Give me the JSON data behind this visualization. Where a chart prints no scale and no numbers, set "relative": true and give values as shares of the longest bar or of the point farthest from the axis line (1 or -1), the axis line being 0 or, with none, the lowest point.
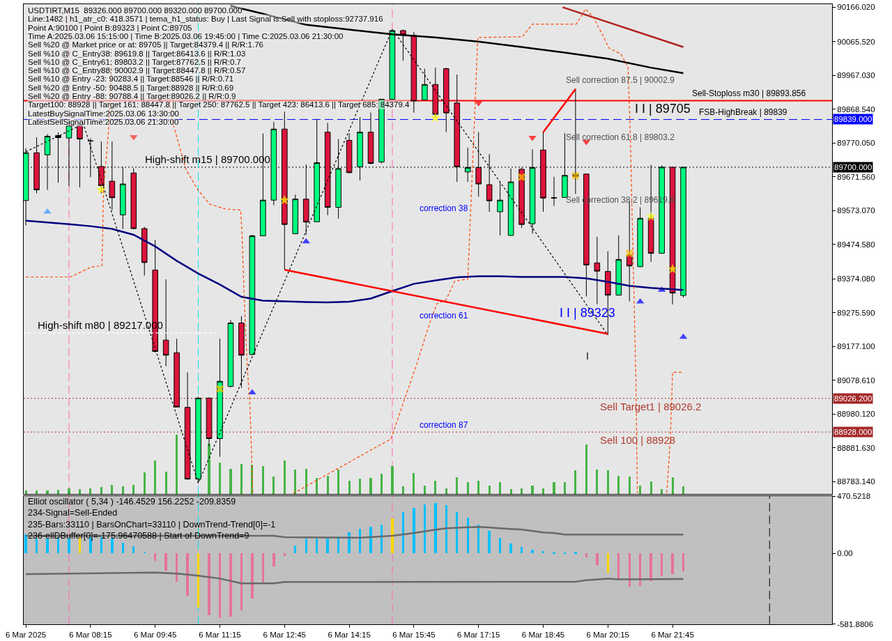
{
  "chart_data": [
    {
      "type": "candlestick",
      "title": "USDTIRT,M15  89326.000 89700.000 89320.000 89700.000",
      "x": [
        "2025-03-06T06:45",
        "2025-03-06T07:00",
        "2025-03-06T07:15",
        "2025-03-06T07:30",
        "2025-03-06T07:45",
        "2025-03-06T08:00",
        "2025-03-06T08:15",
        "2025-03-06T08:30",
        "2025-03-06T08:45",
        "2025-03-06T09:00",
        "2025-03-06T09:15",
        "2025-03-06T09:30",
        "2025-03-06T09:45",
        "2025-03-06T10:00",
        "2025-03-06T10:15",
        "2025-03-06T10:30",
        "2025-03-06T10:45",
        "2025-03-06T11:00",
        "2025-03-06T11:15",
        "2025-03-06T11:30",
        "2025-03-06T11:45",
        "2025-03-06T12:00",
        "2025-03-06T12:15",
        "2025-03-06T12:30",
        "2025-03-06T12:45",
        "2025-03-06T13:00",
        "2025-03-06T13:15",
        "2025-03-06T13:30",
        "2025-03-06T13:45",
        "2025-03-06T14:00",
        "2025-03-06T14:15",
        "2025-03-06T14:30",
        "2025-03-06T14:45",
        "2025-03-06T15:00",
        "2025-03-06T15:15",
        "2025-03-06T15:30",
        "2025-03-06T15:45",
        "2025-03-06T16:00",
        "2025-03-06T16:15",
        "2025-03-06T16:30",
        "2025-03-06T16:45",
        "2025-03-06T17:00",
        "2025-03-06T17:15",
        "2025-03-06T17:30",
        "2025-03-06T17:45",
        "2025-03-06T18:00",
        "2025-03-06T18:15",
        "2025-03-06T18:30",
        "2025-03-06T18:45",
        "2025-03-06T19:00",
        "2025-03-06T19:15",
        "2025-03-06T19:30",
        "2025-03-06T19:45",
        "2025-03-06T20:00",
        "2025-03-06T20:15",
        "2025-03-06T20:30",
        "2025-03-06T20:45",
        "2025-03-06T21:00",
        "2025-03-06T21:15",
        "2025-03-06T21:30",
        "2025-03-06T21:45",
        "2025-03-06T22:00"
      ],
      "ohlc": [
        [
          89603,
          89755,
          89530,
          89742
        ],
        [
          89742,
          89787,
          89624,
          89634
        ],
        [
          89736,
          89796,
          89634,
          89790
        ],
        [
          89792,
          89801,
          89655,
          89786
        ],
        [
          89785,
          89836,
          89645,
          89821
        ],
        [
          89821,
          89832,
          89641,
          89782
        ],
        [
          89777,
          89784,
          89671,
          89776
        ],
        [
          89702,
          89775,
          89624,
          89646
        ],
        [
          89659,
          89775,
          89575,
          89611
        ],
        [
          89561,
          89700,
          89520,
          89651
        ],
        [
          89683,
          89697,
          89519,
          89521
        ],
        [
          89521,
          89526,
          89384,
          89422
        ],
        [
          89400,
          89488,
          89160,
          89163
        ],
        [
          89196,
          89373,
          89120,
          89152
        ],
        [
          89159,
          89200,
          89001,
          89001
        ],
        [
          89000,
          89102,
          88789,
          88791
        ],
        [
          88791,
          89031,
          88779,
          89027
        ],
        [
          89027,
          89029,
          88887,
          88909
        ],
        [
          88909,
          89200,
          88856,
          89076
        ],
        [
          89061,
          89255,
          89058,
          89246
        ],
        [
          89246,
          89266,
          89057,
          89152
        ],
        [
          89154,
          89503,
          89152,
          89500
        ],
        [
          89500,
          89798,
          89499,
          89604
        ],
        [
          89604,
          89832,
          89589,
          89811
        ],
        [
          89811,
          89862,
          89401,
          89533
        ],
        [
          89506,
          89620,
          89505,
          89607
        ],
        [
          89607,
          89708,
          89503,
          89540
        ],
        [
          89541,
          89839,
          89540,
          89713
        ],
        [
          89802,
          89829,
          89560,
          89583
        ],
        [
          89583,
          89782,
          89550,
          89696
        ],
        [
          89778,
          89799,
          89683,
          89684
        ],
        [
          89701,
          89846,
          89661,
          89802
        ],
        [
          89802,
          89859,
          89708,
          89711
        ],
        [
          89715,
          89898,
          89711,
          89898
        ],
        [
          89898,
          90102,
          89898,
          90098
        ],
        [
          90098,
          90101,
          90010,
          90086
        ],
        [
          90084,
          90094,
          89859,
          89893
        ],
        [
          89896,
          89987,
          89895,
          89941
        ],
        [
          89941,
          89990,
          89846,
          89854
        ],
        [
          89987,
          89990,
          89802,
          89858
        ],
        [
          89887,
          89970,
          89657,
          89701
        ],
        [
          89686,
          89757,
          89657,
          89699
        ],
        [
          89699,
          89802,
          89614,
          89651
        ],
        [
          89649,
          89738,
          89570,
          89602
        ],
        [
          89570,
          89657,
          89501,
          89604
        ],
        [
          89501,
          89696,
          89501,
          89657
        ],
        [
          89694,
          89699,
          89523,
          89533
        ],
        [
          89535,
          89752,
          89506,
          89699
        ],
        [
          89750,
          89802,
          89570,
          89610
        ],
        [
          89611,
          89672,
          89587,
          89610
        ],
        [
          89612,
          89799,
          89611,
          89676
        ],
        [
          89673,
          89928,
          89622,
          89679
        ],
        [
          89680,
          89681,
          89323,
          89415
        ],
        [
          89421,
          89497,
          89300,
          89397
        ],
        [
          89396,
          89455,
          89211,
          89327
        ],
        [
          89327,
          89501,
          89326,
          89431
        ],
        [
          89444,
          89601,
          89309,
          89412
        ],
        [
          89410,
          89583,
          89409,
          89551
        ],
        [
          89551,
          89707,
          89424,
          89449
        ],
        [
          89449,
          89705,
          89448,
          89700
        ],
        [
          89700,
          89701,
          89300,
          89333
        ],
        [
          89326,
          89700,
          89320,
          89700
        ]
      ],
      "colors": [
        "#00ff7f",
        "#dc143c",
        "#00ff7f",
        "#000000",
        "#00ff7f",
        "#dc143c",
        "#000000",
        "#dc143c",
        "#dc143c",
        "#00ff7f",
        "#dc143c",
        "#dc143c",
        "#dc143c",
        "#dc143c",
        "#dc143c",
        "#dc143c",
        "#00ff7f",
        "#dc143c",
        "#00ff7f",
        "#00ff7f",
        "#dc143c",
        "#00ff7f",
        "#00ff7f",
        "#00ff7f",
        "#dc143c",
        "#00ff7f",
        "#dc143c",
        "#00ff7f",
        "#dc143c",
        "#00ff7f",
        "#dc143c",
        "#00ff7f",
        "#dc143c",
        "#00ff7f",
        "#00ff7f",
        "#dc143c",
        "#dc143c",
        "#00ff7f",
        "#dc143c",
        "#dc143c",
        "#dc143c",
        "#00ff7f",
        "#dc143c",
        "#dc143c",
        "#00ff7f",
        "#00ff7f",
        "#dc143c",
        "#00ff7f",
        "#dc143c",
        "#000000",
        "#00ff7f",
        "#000000",
        "#dc143c",
        "#dc143c",
        "#dc143c",
        "#00ff7f",
        "#dc143c",
        "#00ff7f",
        "#dc143c",
        "#00ff7f",
        "#dc143c",
        "#00ff7f"
      ],
      "xlim": [
        "2025-03-06T06:42",
        "2025-03-07T01:27"
      ],
      "ylim": [
        88747,
        90175
      ],
      "yticks": [
        {
          "value": 90166.02,
          "label": "90166.020"
        },
        {
          "value": 90065.52,
          "label": "90065.520"
        },
        {
          "value": 89967.03,
          "label": "89967.030"
        },
        {
          "value": 89868.54,
          "label": "89868.540"
        },
        {
          "value": 89770.05,
          "label": "89770.050"
        },
        {
          "value": 89671.56,
          "label": "89671.560"
        },
        {
          "value": 89573.07,
          "label": "89573.070"
        },
        {
          "value": 89474.58,
          "label": "89474.580"
        },
        {
          "value": 89374.08,
          "label": "89374.080"
        },
        {
          "value": 89275.59,
          "label": "89275.590"
        },
        {
          "value": 89177.1,
          "label": "89177.100"
        },
        {
          "value": 89078.61,
          "label": "89078.610"
        },
        {
          "value": 88980.12,
          "label": "88980.120"
        },
        {
          "value": 88881.63,
          "label": "88881.630"
        },
        {
          "value": 88783.14,
          "label": "88783.140"
        }
      ],
      "tick_labels": "y",
      "series": [
        {
          "type": "line",
          "color": "#000080",
          "line_style": "solid",
          "x": [
            "2025-03-06T06:45",
            "2025-03-06T07:45",
            "2025-03-06T08:15",
            "2025-03-06T08:45",
            "2025-03-06T09:15",
            "2025-03-06T09:45",
            "2025-03-06T10:15",
            "2025-03-06T10:45",
            "2025-03-06T11:15",
            "2025-03-06T11:45",
            "2025-03-06T12:15",
            "2025-03-06T12:45",
            "2025-03-06T13:15",
            "2025-03-06T13:45",
            "2025-03-06T14:15",
            "2025-03-06T14:45",
            "2025-03-06T15:15",
            "2025-03-06T15:45",
            "2025-03-06T16:15",
            "2025-03-06T16:45",
            "2025-03-06T17:15",
            "2025-03-06T17:45",
            "2025-03-06T18:15",
            "2025-03-06T18:45",
            "2025-03-06T19:15",
            "2025-03-06T19:45",
            "2025-03-06T20:15",
            "2025-03-06T20:45",
            "2025-03-06T21:15",
            "2025-03-06T21:45",
            "2025-03-06T22:00"
          ],
          "values": [
            89544,
            89534,
            89528,
            89520,
            89503,
            89469,
            89427,
            89390,
            89358,
            89322,
            89311,
            89309,
            89307,
            89306,
            89308,
            89317,
            89339,
            89360,
            89370,
            89379,
            89382,
            89382,
            89380,
            89380,
            89380,
            89376,
            89366,
            89354,
            89348,
            89344,
            89342
          ]
        },
        {
          "type": "line",
          "color": "#000000",
          "line_style": "solid",
          "x": [
            "2025-03-06T11:30",
            "2025-03-06T12:15",
            "2025-03-06T12:45",
            "2025-03-06T13:15",
            "2025-03-06T14:15",
            "2025-03-06T15:15",
            "2025-03-06T16:15",
            "2025-03-06T17:15",
            "2025-03-06T18:15",
            "2025-03-06T19:15",
            "2025-03-06T20:15",
            "2025-03-06T21:15",
            "2025-03-06T22:00"
          ],
          "values": [
            90170,
            90147,
            90131,
            90115,
            90101,
            90087,
            90078,
            90066,
            90050,
            90034,
            90016,
            89990,
            89974
          ]
        },
        {
          "type": "line",
          "color": "#b22222",
          "line_style": "solid",
          "x": [
            "2025-03-06T19:12",
            "2025-03-06T22:00"
          ],
          "values": [
            90166,
            90050
          ]
        },
        {
          "type": "line",
          "color": "#ff4500",
          "line_style": "dashed",
          "x": [
            "2025-03-06T10:05",
            "2025-03-06T10:09",
            "2025-03-06T10:28",
            "2025-03-06T10:44",
            "2025-03-06T11:01",
            "2025-03-06T11:23",
            "2025-03-06T11:44",
            "2025-03-06T11:46",
            "2025-03-06T11:49",
            "2025-03-06T11:53",
            "2025-03-06T11:57",
            "2025-03-06T12:01",
            "2025-03-06T12:30",
            "2025-03-06T12:57",
            "2025-03-06T15:13",
            "2025-03-06T15:49",
            "2025-03-06T16:05",
            "2025-03-06T16:17",
            "2025-03-06T16:30",
            "2025-03-06T16:42",
            "2025-03-06T17:00",
            "2025-03-06T17:04",
            "2025-03-06T17:08",
            "2025-03-06T17:14",
            "2025-03-06T18:16",
            "2025-03-06T18:30",
            "2025-03-06T19:31",
            "2025-03-06T19:44",
            "2025-03-06T19:54",
            "2025-03-06T20:08",
            "2025-03-06T20:16",
            "2025-03-06T20:33",
            "2025-03-06T20:43",
            "2025-03-06T20:46",
            "2025-03-06T20:50",
            "2025-03-06T20:54",
            "2025-03-06T20:56"
          ],
          "values": [
            89893,
            89832,
            89693,
            89635,
            89592,
            89578,
            89575,
            89499,
            89312,
            89123,
            88998,
            88747,
            null,
            88749,
            88908,
            89126,
            89233,
            89302,
            89314,
            89368,
            89374,
            89570,
            89772,
            90078,
            90080,
            90117,
            90117,
            90161,
            90139,
            90084,
            90048,
            90030,
            89992,
            89810,
            89445,
            89080,
            88751
          ]
        },
        {
          "type": "line",
          "color": "#ff4500",
          "line_style": "dashed",
          "x": [
            "2025-03-06T06:45",
            "2025-03-06T07:47",
            "2025-03-06T08:16",
            "2025-03-06T08:31",
            "2025-03-06T08:33",
            "2025-03-06T08:41",
            "2025-03-06T08:44"
          ],
          "values": [
            89380,
            89380,
            89409,
            89413,
            89630,
            89832,
            90004
          ]
        },
        {
          "type": "line",
          "color": "#ff4500",
          "line_style": "dashed",
          "x": [
            "2025-03-06T21:37",
            "2025-03-06T21:42",
            "2025-03-06T21:45",
            "2025-03-06T22:00"
          ],
          "values": [
            88751,
            88914,
            89102,
            89102
          ]
        },
        {
          "type": "line",
          "color": "#000000",
          "line_style": "dotted",
          "x": [
            "2025-03-06T06:45",
            "2025-03-06T08:05",
            "2025-03-06T10:45",
            "2025-03-06T15:15",
            "2025-03-06T20:15"
          ],
          "values": [
            89745,
            89826,
            88779,
            90102,
            89211
          ]
        },
        {
          "type": "line",
          "color": "#ff0000",
          "line_style": "solid",
          "x": [
            "2025-03-06T12:45",
            "2025-03-06T20:15"
          ],
          "values": [
            89401,
            89214
          ]
        },
        {
          "type": "line",
          "color": "#ff0000",
          "line_style": "solid",
          "x": [
            "2025-03-06T18:45",
            "2025-03-06T19:30"
          ],
          "values": [
            89802,
            89928
          ]
        },
        {
          "type": "line",
          "color": "#ffffff",
          "line_style": "dashed",
          "x": [
            "2025-03-06T06:42",
            "2025-03-06T11:14"
          ],
          "values": [
            89217,
            89217
          ]
        },
        {
          "type": "scatter",
          "color": "#ffff00",
          "marker": "star",
          "x": [
            "2025-03-06T08:30",
            "2025-03-06T12:45",
            "2025-03-06T16:15",
            "2025-03-06T21:15",
            "2025-03-06T21:45"
          ],
          "values": [
            89634,
            89604,
            89844,
            89556,
            89403
          ]
        },
        {
          "type": "scatter",
          "color": "#ffc000",
          "marker": "cross",
          "x": [
            "2025-03-06T11:15",
            "2025-03-06T18:15",
            "2025-03-06T19:30",
            "2025-03-06T20:45"
          ],
          "values": [
            89054,
            89671,
            89675,
            89449
          ]
        },
        {
          "type": "scatter",
          "color": "#0000ff",
          "marker": "triangle",
          "x": [
            "2025-03-06T12:00",
            "2025-03-06T13:15",
            "2025-03-06T21:00",
            "2025-03-06T21:30",
            "2025-03-06T22:00"
          ],
          "values": [
            89043,
            89483,
            89308,
            89342,
            89205
          ]
        },
        {
          "type": "scatter",
          "color": "#ff0000",
          "marker": "triangle",
          "x": [
            "2025-03-06T17:15",
            "2025-03-06T18:30",
            "2025-03-06T19:45"
          ],
          "values": [
            89887,
            89786,
            89774
          ]
        },
        {
          "type": "scatter",
          "color": "#3399ff",
          "marker": "triangle",
          "x": [
            "2025-03-06T07:15"
          ],
          "values": [
            89570
          ]
        },
        {
          "type": "scatter",
          "color": "#ff3333",
          "marker": "triangle",
          "x": [
            "2025-03-06T09:15"
          ],
          "values": [
            89788
          ]
        }
      ],
      "ref_lines": [
        {
          "axis": "y",
          "value": 89893.85,
          "color": "#ff0000",
          "line_style": "solid"
        },
        {
          "axis": "y",
          "value": 89839,
          "label": "89839.000",
          "color": "#0000ff",
          "line_style": "dashed"
        },
        {
          "axis": "y",
          "value": 89700,
          "label": "89700.000",
          "color": "#000000",
          "line_style": "dotted"
        },
        {
          "axis": "y",
          "value": 89026.2,
          "label": "89026.200",
          "color": "#a52a2a",
          "line_style": "dotted"
        },
        {
          "axis": "y",
          "value": 88928,
          "label": "88928.000",
          "color": "#a52a2a",
          "line_style": "dotted"
        },
        {
          "axis": "x",
          "value": "2025-03-06T07:45",
          "color": "#ff69b4",
          "line_style": "dashed"
        },
        {
          "axis": "x",
          "value": "2025-03-06T10:45",
          "color": "#00e5ee",
          "line_style": "dashed"
        },
        {
          "axis": "x",
          "value": "2025-03-06T15:15",
          "color": "#ff69b4",
          "line_style": "dashed"
        }
      ],
      "annotations": [
        "Line:1482 | h1_atr_c0: 418.3571 | tema_h1_status: Buy | Last Signal is:Sell with stoploss:92737.916",
        "Point A:90100 | Point B:89323 | Point C:89705",
        "Time A:2025.03.06 15:15:00 | Time B:2025.03.06 19:45:00 | Time C:2025.03.06 21:30:00",
        "Sell %20 @ Market price or at: 89705 || Target:84379.4 || R/R:1.76",
        "Sell %10 @ C_Entry38: 89619.8 || Target:86413.6 || R/R:1.03",
        "Sell %10 @ C_Entry61: 89803.2 || Target:87762.5 || R/R:0.7",
        "Sell %10 @ C_Entry88: 90002.9 || Target:88447.8 || R/R:0.57",
        "Sell %10 @ Entry -23: 90283.4 || Target:88546 || R/R:0.71",
        "Sell %20 @ Entry -50: 90488.5 || Target:88928 || R/R:0.69",
        "Sell %20 @ Entry -88: 90788.4 || Target:89026.2 || R/R:0.9",
        "Target100: 88928 || Target 161: 88447.8 || Target 250: 87762.5 || Target 423: 86413.6 || Target 685: 84379.4",
        "LatestBuySignalTime:2025.03.06 13:30:00",
        "LatestSellSignalTime:2025.03.06 21:30:00",
        "correction 38",
        "correction 61",
        "Sell correction 87.5 | 90002.9",
        "Sell correction 61.8 | 89803.2",
        "Sell correction 38.2 | 89619.8",
        "I I | 89705",
        "I I | 89323",
        "I",
        {
          "text": "High-shift m15 | 89700.000",
          "x": "2025-03-06T09:29",
          "y": 89700
        },
        {
          "text": "High-shift m80 | 89217.000",
          "x": "2025-03-06T06:59",
          "y": 89217
        },
        {
          "text": "correction 87",
          "x": "2025-03-06T15:51",
          "y": 88928
        },
        {
          "text": "Sell Target1 | 89026.2",
          "x": "2025-03-06T20:02",
          "y": 89026.2
        },
        {
          "text": "Sell 100 | 88928",
          "x": "2025-03-06T20:02",
          "y": 88928
        },
        {
          "text": "Sell-Stoploss m30 | 89893.856",
          "x": "2025-03-06T22:10",
          "y": 89893.85
        },
        {
          "text": "FSB-HighBreak | 89839",
          "x": "2025-03-06T22:20",
          "y": 89839
        }
      ]
    },
    {
      "type": "bar",
      "title": "Elliot oscillator ( 5,34 ) -146.4529 156.2252 -209.8359",
      "x": [
        "2025-03-06T06:45",
        "2025-03-06T07:00",
        "2025-03-06T07:15",
        "2025-03-06T07:30",
        "2025-03-06T07:45",
        "2025-03-06T08:00",
        "2025-03-06T08:15",
        "2025-03-06T08:30",
        "2025-03-06T08:45",
        "2025-03-06T09:00",
        "2025-03-06T09:15",
        "2025-03-06T09:30",
        "2025-03-06T09:45",
        "2025-03-06T10:00",
        "2025-03-06T10:15",
        "2025-03-06T10:30",
        "2025-03-06T10:45",
        "2025-03-06T11:00",
        "2025-03-06T11:15",
        "2025-03-06T11:30",
        "2025-03-06T11:45",
        "2025-03-06T12:00",
        "2025-03-06T12:15",
        "2025-03-06T12:30",
        "2025-03-06T12:45",
        "2025-03-06T13:00",
        "2025-03-06T13:15",
        "2025-03-06T13:30",
        "2025-03-06T13:45",
        "2025-03-06T14:00",
        "2025-03-06T14:15",
        "2025-03-06T14:30",
        "2025-03-06T14:45",
        "2025-03-06T15:00",
        "2025-03-06T15:15",
        "2025-03-06T15:30",
        "2025-03-06T15:45",
        "2025-03-06T16:00",
        "2025-03-06T16:15",
        "2025-03-06T16:30",
        "2025-03-06T16:45",
        "2025-03-06T17:00",
        "2025-03-06T17:15",
        "2025-03-06T17:30",
        "2025-03-06T17:45",
        "2025-03-06T18:00",
        "2025-03-06T18:15",
        "2025-03-06T18:30",
        "2025-03-06T18:45",
        "2025-03-06T19:00",
        "2025-03-06T19:15",
        "2025-03-06T19:30",
        "2025-03-06T19:45",
        "2025-03-06T20:00",
        "2025-03-06T20:15",
        "2025-03-06T20:30",
        "2025-03-06T20:45",
        "2025-03-06T21:00",
        "2025-03-06T21:15",
        "2025-03-06T21:30",
        "2025-03-06T21:45",
        "2025-03-06T22:00"
      ],
      "xlim": [
        "2025-03-06T06:42",
        "2025-03-07T01:27"
      ],
      "xticks": [
        {
          "value": "2025-03-06T06:45",
          "label": "6 Mar 2025"
        },
        {
          "value": "2025-03-06T08:15",
          "label": "6 Mar 08:15"
        },
        {
          "value": "2025-03-06T09:45",
          "label": "6 Mar 09:45"
        },
        {
          "value": "2025-03-06T11:15",
          "label": "6 Mar 11:15"
        },
        {
          "value": "2025-03-06T12:45",
          "label": "6 Mar 12:45"
        },
        {
          "value": "2025-03-06T14:15",
          "label": "6 Mar 14:15"
        },
        {
          "value": "2025-03-06T15:45",
          "label": "6 Mar 15:45"
        },
        {
          "value": "2025-03-06T17:15",
          "label": "6 Mar 17:15"
        },
        {
          "value": "2025-03-06T18:45",
          "label": "6 Mar 18:45"
        },
        {
          "value": "2025-03-06T20:15",
          "label": "6 Mar 20:15"
        },
        {
          "value": "2025-03-06T21:45",
          "label": "6 Mar 21:45"
        }
      ],
      "ylim": [
        -581.8806,
        470.5218
      ],
      "yticks": [
        470.5218,
        {
          "value": 0,
          "label": "0.00"
        },
        -581.8806
      ],
      "series": [
        {
          "type": "bar",
          "values": [
            158,
            123,
            123,
            123,
            123,
            134,
            134,
            134,
            123,
            87,
            57,
            13,
            -64,
            -141,
            -234,
            -346,
            -443,
            -507,
            -534,
            -518,
            -467,
            -374,
            -239,
            -106,
            -22,
            64,
            123,
            123,
            123,
            139,
            174,
            204,
            218,
            234,
            285,
            337,
            376,
            400,
            414,
            395,
            341,
            291,
            238,
            187,
            127,
            79,
            53,
            29,
            17,
            7,
            7,
            10,
            -31,
            -94,
            -159,
            -209,
            -276,
            -269,
            -231,
            -187,
            -171,
            -146
          ],
          "colors": [
            "#00bfff",
            "#00bfff",
            "#00bfff",
            "#00bfff",
            "#00bfff",
            "#ffd700",
            "#00bfff",
            "#00bfff",
            "#00bfff",
            "#00bfff",
            "#00bfff",
            "#00bfff",
            "#e67399",
            "#e67399",
            "#e67399",
            "#e67399",
            "#ffd700",
            "#e67399",
            "#e67399",
            "#e67399",
            "#e67399",
            "#e67399",
            "#e67399",
            "#e67399",
            "#e67399",
            "#00bfff",
            "#00bfff",
            "#00bfff",
            "#00bfff",
            "#00bfff",
            "#00bfff",
            "#00bfff",
            "#00bfff",
            "#00bfff",
            "#ffd700",
            "#00bfff",
            "#00bfff",
            "#00bfff",
            "#00bfff",
            "#00bfff",
            "#00bfff",
            "#00bfff",
            "#00bfff",
            "#00bfff",
            "#00bfff",
            "#00bfff",
            "#00bfff",
            "#00bfff",
            "#00bfff",
            "#00bfff",
            "#00bfff",
            "#00bfff",
            "#e67399",
            "#e67399",
            "#ffd700",
            "#e67399",
            "#e67399",
            "#e67399",
            "#e67399",
            "#e67399",
            "#e67399",
            "#e67399"
          ]
        },
        {
          "type": "line",
          "color": "#696969",
          "line_style": "solid",
          "x": [
            "2025-03-06T06:45",
            "2025-03-06T12:30",
            "2025-03-06T12:45",
            "2025-03-06T14:30",
            "2025-03-06T15:15",
            "2025-03-06T15:45",
            "2025-03-06T16:15",
            "2025-03-06T16:30",
            "2025-03-06T17:00",
            "2025-03-06T17:15",
            "2025-03-06T17:30",
            "2025-03-06T17:45",
            "2025-03-06T18:00",
            "2025-03-06T18:15",
            "2025-03-06T18:30",
            "2025-03-06T18:45",
            "2025-03-06T19:00",
            "2025-03-06T19:15",
            "2025-03-06T22:00"
          ],
          "values": [
            146,
            146,
            134,
            130,
            146,
            169,
            195,
            207,
            216,
            219,
            214,
            207,
            202,
            197,
            185,
            173,
            168,
            156,
            156
          ]
        },
        {
          "type": "line",
          "color": "#696969",
          "line_style": "solid",
          "x": [
            "2025-03-06T06:45",
            "2025-03-06T09:45",
            "2025-03-06T10:15",
            "2025-03-06T10:45",
            "2025-03-06T11:15",
            "2025-03-06T11:45",
            "2025-03-06T12:30",
            "2025-03-06T12:45",
            "2025-03-06T19:30",
            "2025-03-06T19:45",
            "2025-03-06T20:15",
            "2025-03-06T20:30",
            "2025-03-06T22:00"
          ],
          "values": [
            -169,
            -157,
            -165,
            -183,
            -206,
            -245,
            -245,
            -234,
            -233,
            -219,
            -207,
            -212,
            -210
          ]
        }
      ],
      "ref_lines": [
        {
          "axis": "x",
          "value": "2025-03-06T07:45",
          "color": "#ff69b4",
          "line_style": "dashed"
        },
        {
          "axis": "x",
          "value": "2025-03-06T10:45",
          "color": "#00e5ee",
          "line_style": "dashed"
        },
        {
          "axis": "x",
          "value": "2025-03-06T15:15",
          "color": "#ff69b4",
          "line_style": "dashed"
        },
        {
          "axis": "x",
          "value": "2025-03-07T00:00",
          "color": "#000000",
          "line_style": "dashed"
        }
      ],
      "annotations": [
        "234-Signal=Sell-Ended",
        "235-Bars:33110 | BarsOnChart=33110 | DownTrend-Trend[0]=-1",
        "236-ellDBuffer[0]=-175.96470588 | Start of DownTrend=9"
      ]
    },
    {
      "type": "bar",
      "relative": true,
      "tick_labels": false,
      "color": "#46b446",
      "x": [
        "2025-03-06T06:45",
        "2025-03-06T07:00",
        "2025-03-06T07:15",
        "2025-03-06T07:30",
        "2025-03-06T07:45",
        "2025-03-06T08:00",
        "2025-03-06T08:15",
        "2025-03-06T08:30",
        "2025-03-06T08:45",
        "2025-03-06T09:00",
        "2025-03-06T09:15",
        "2025-03-06T09:30",
        "2025-03-06T09:45",
        "2025-03-06T10:00",
        "2025-03-06T10:15",
        "2025-03-06T10:30",
        "2025-03-06T10:45",
        "2025-03-06T11:00",
        "2025-03-06T11:15",
        "2025-03-06T11:30",
        "2025-03-06T11:45",
        "2025-03-06T12:00",
        "2025-03-06T12:15",
        "2025-03-06T12:30",
        "2025-03-06T12:45",
        "2025-03-06T13:00",
        "2025-03-06T13:15",
        "2025-03-06T13:30",
        "2025-03-06T13:45",
        "2025-03-06T14:00",
        "2025-03-06T14:15",
        "2025-03-06T14:30",
        "2025-03-06T14:45",
        "2025-03-06T15:00",
        "2025-03-06T15:15",
        "2025-03-06T15:30",
        "2025-03-06T15:45",
        "2025-03-06T16:00",
        "2025-03-06T16:15",
        "2025-03-06T16:30",
        "2025-03-06T16:45",
        "2025-03-06T17:00",
        "2025-03-06T17:15",
        "2025-03-06T17:30",
        "2025-03-06T17:45",
        "2025-03-06T18:00",
        "2025-03-06T18:15",
        "2025-03-06T18:30",
        "2025-03-06T18:45",
        "2025-03-06T19:00",
        "2025-03-06T19:15",
        "2025-03-06T19:30",
        "2025-03-06T19:45",
        "2025-03-06T20:00",
        "2025-03-06T20:15",
        "2025-03-06T20:30",
        "2025-03-06T20:45",
        "2025-03-06T21:00",
        "2025-03-06T21:15",
        "2025-03-06T21:30",
        "2025-03-06T21:45",
        "2025-03-06T22:00"
      ],
      "values": [
        0.06,
        0.06,
        0.06,
        0.07,
        0.1,
        0.09,
        0.1,
        0.12,
        0.15,
        0.13,
        0.15,
        0.37,
        0.56,
        0.38,
        1,
        null,
        null,
        0.85,
        0.53,
        0.43,
        0.51,
        0.49,
        0.47,
        0.3,
        0.57,
        0.41,
        0.43,
        0.27,
        0.31,
        0.41,
        0.22,
        0.26,
        0.27,
        0.34,
        0.47,
        0.13,
        0.35,
        0.14,
        0.22,
        0.1,
        0.28,
        0.2,
        0.22,
        0.14,
        0.2,
        0.09,
        0.1,
        0.14,
        0.1,
        0.2,
        0.2,
        0.4,
        0.83,
        0.41,
        0.4,
        0.31,
        0.29,
        0.14,
        0.21,
        0.09,
        0.28,
        0.13
      ],
      "xlim": [
        "2025-03-06T06:42",
        "2025-03-07T01:27"
      ]
    }
  ]
}
